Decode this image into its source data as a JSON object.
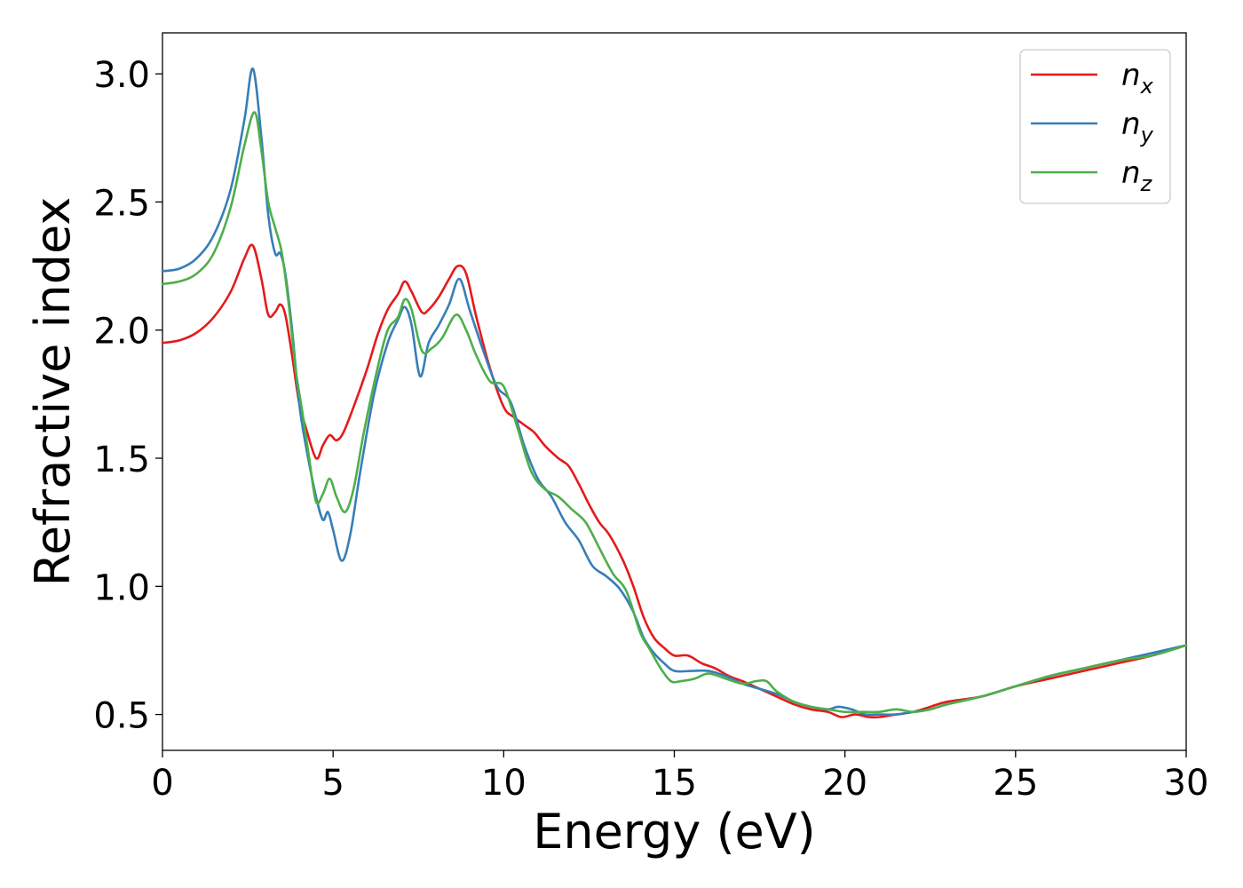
{
  "chart_data": {
    "type": "line",
    "xlabel": "Energy (eV)",
    "ylabel": "Refractive index",
    "xlim": [
      0,
      30
    ],
    "ylim": [
      0.36,
      3.16
    ],
    "xticks": [
      0,
      5,
      10,
      15,
      20,
      25,
      30
    ],
    "xtick_labels": [
      "0",
      "5",
      "10",
      "15",
      "20",
      "25",
      "30"
    ],
    "yticks": [
      0.5,
      1.0,
      1.5,
      2.0,
      2.5,
      3.0
    ],
    "ytick_labels": [
      "0.5",
      "1.0",
      "1.5",
      "2.0",
      "2.5",
      "3.0"
    ],
    "grid": false,
    "legend_position": "top-right",
    "series": [
      {
        "name": "n_x",
        "label_base": "n",
        "label_sub": "x",
        "color": "#e41a1c",
        "x": [
          0,
          0.5,
          1,
          1.5,
          2,
          2.4,
          2.65,
          2.9,
          3.1,
          3.3,
          3.45,
          3.6,
          3.8,
          4.0,
          4.2,
          4.5,
          4.7,
          4.9,
          5.1,
          5.3,
          5.6,
          6.0,
          6.3,
          6.6,
          6.9,
          7.1,
          7.3,
          7.6,
          7.8,
          8.1,
          8.4,
          8.65,
          8.9,
          9.2,
          9.6,
          10.0,
          10.3,
          10.6,
          10.9,
          11.2,
          11.6,
          11.9,
          12.2,
          12.5,
          12.8,
          13.1,
          13.5,
          13.8,
          14.1,
          14.4,
          14.7,
          15.0,
          15.4,
          15.8,
          16.2,
          16.6,
          17.0,
          17.5,
          18.0,
          18.5,
          19.0,
          19.5,
          19.9,
          20.3,
          20.7,
          21.0,
          21.5,
          22.0,
          22.5,
          23.0,
          24.0,
          25.0,
          26.0,
          27.0,
          28.0,
          29.0,
          30.0
        ],
        "y": [
          1.95,
          1.96,
          1.99,
          2.05,
          2.15,
          2.28,
          2.33,
          2.2,
          2.06,
          2.07,
          2.1,
          2.06,
          1.9,
          1.72,
          1.62,
          1.5,
          1.55,
          1.59,
          1.57,
          1.6,
          1.7,
          1.85,
          1.98,
          2.08,
          2.14,
          2.19,
          2.15,
          2.07,
          2.08,
          2.13,
          2.2,
          2.25,
          2.22,
          2.05,
          1.85,
          1.7,
          1.66,
          1.63,
          1.6,
          1.55,
          1.5,
          1.47,
          1.4,
          1.32,
          1.25,
          1.2,
          1.1,
          1.0,
          0.88,
          0.8,
          0.76,
          0.73,
          0.73,
          0.7,
          0.68,
          0.65,
          0.63,
          0.6,
          0.57,
          0.54,
          0.52,
          0.51,
          0.49,
          0.5,
          0.49,
          0.49,
          0.5,
          0.51,
          0.53,
          0.55,
          0.57,
          0.61,
          0.64,
          0.67,
          0.7,
          0.73,
          0.77
        ]
      },
      {
        "name": "n_y",
        "label_base": "n",
        "label_sub": "y",
        "color": "#377eb8",
        "x": [
          0,
          0.5,
          1,
          1.5,
          2,
          2.4,
          2.65,
          2.9,
          3.1,
          3.3,
          3.45,
          3.6,
          3.8,
          4.0,
          4.2,
          4.5,
          4.7,
          4.85,
          5.0,
          5.25,
          5.5,
          5.8,
          6.2,
          6.6,
          6.9,
          7.1,
          7.3,
          7.55,
          7.8,
          8.1,
          8.4,
          8.7,
          9.0,
          9.4,
          9.8,
          10.2,
          10.6,
          11.0,
          11.4,
          11.8,
          12.2,
          12.6,
          13.0,
          13.4,
          13.8,
          14.1,
          14.4,
          14.7,
          15.0,
          15.5,
          16.0,
          16.5,
          17.0,
          17.5,
          18.0,
          18.5,
          19.0,
          19.5,
          19.8,
          20.2,
          20.6,
          21.0,
          21.5,
          22.0,
          22.5,
          23.0,
          24.0,
          25.0,
          26.0,
          27.0,
          28.0,
          29.0,
          30.0
        ],
        "y": [
          2.23,
          2.24,
          2.28,
          2.37,
          2.55,
          2.82,
          3.02,
          2.75,
          2.45,
          2.3,
          2.3,
          2.22,
          2.0,
          1.72,
          1.55,
          1.35,
          1.26,
          1.29,
          1.22,
          1.1,
          1.2,
          1.45,
          1.75,
          1.95,
          2.04,
          2.09,
          2.02,
          1.82,
          1.95,
          2.02,
          2.1,
          2.2,
          2.08,
          1.92,
          1.78,
          1.72,
          1.55,
          1.42,
          1.35,
          1.25,
          1.18,
          1.08,
          1.04,
          0.99,
          0.9,
          0.8,
          0.74,
          0.7,
          0.67,
          0.67,
          0.67,
          0.65,
          0.62,
          0.6,
          0.58,
          0.55,
          0.53,
          0.52,
          0.53,
          0.52,
          0.5,
          0.5,
          0.5,
          0.51,
          0.52,
          0.54,
          0.57,
          0.61,
          0.65,
          0.68,
          0.71,
          0.74,
          0.77
        ]
      },
      {
        "name": "n_z",
        "label_base": "n",
        "label_sub": "z",
        "color": "#4daf4a",
        "x": [
          0,
          0.5,
          1,
          1.5,
          2,
          2.4,
          2.7,
          2.9,
          3.1,
          3.3,
          3.5,
          3.7,
          3.9,
          4.1,
          4.3,
          4.5,
          4.7,
          4.9,
          5.1,
          5.35,
          5.6,
          5.9,
          6.3,
          6.6,
          6.9,
          7.1,
          7.3,
          7.6,
          7.9,
          8.2,
          8.6,
          8.9,
          9.2,
          9.6,
          10.0,
          10.4,
          10.8,
          11.2,
          11.6,
          12.0,
          12.4,
          12.8,
          13.2,
          13.6,
          14.0,
          14.3,
          14.6,
          14.9,
          15.2,
          15.6,
          16.0,
          16.5,
          17.0,
          17.4,
          17.7,
          18.0,
          18.5,
          19.0,
          19.5,
          20.0,
          20.5,
          21.0,
          21.5,
          22.0,
          22.5,
          23.0,
          24.0,
          25.0,
          26.0,
          27.0,
          28.0,
          29.0,
          30.0
        ],
        "y": [
          2.18,
          2.19,
          2.22,
          2.3,
          2.48,
          2.72,
          2.85,
          2.7,
          2.5,
          2.4,
          2.3,
          2.1,
          1.85,
          1.68,
          1.5,
          1.33,
          1.36,
          1.42,
          1.35,
          1.29,
          1.38,
          1.6,
          1.85,
          2.0,
          2.05,
          2.12,
          2.08,
          1.92,
          1.93,
          1.97,
          2.06,
          2.0,
          1.9,
          1.8,
          1.78,
          1.62,
          1.45,
          1.38,
          1.35,
          1.3,
          1.25,
          1.15,
          1.05,
          0.98,
          0.82,
          0.75,
          0.68,
          0.63,
          0.63,
          0.64,
          0.66,
          0.64,
          0.62,
          0.63,
          0.63,
          0.59,
          0.55,
          0.53,
          0.52,
          0.51,
          0.51,
          0.51,
          0.52,
          0.51,
          0.52,
          0.54,
          0.57,
          0.61,
          0.65,
          0.68,
          0.71,
          0.73,
          0.77
        ]
      }
    ]
  }
}
